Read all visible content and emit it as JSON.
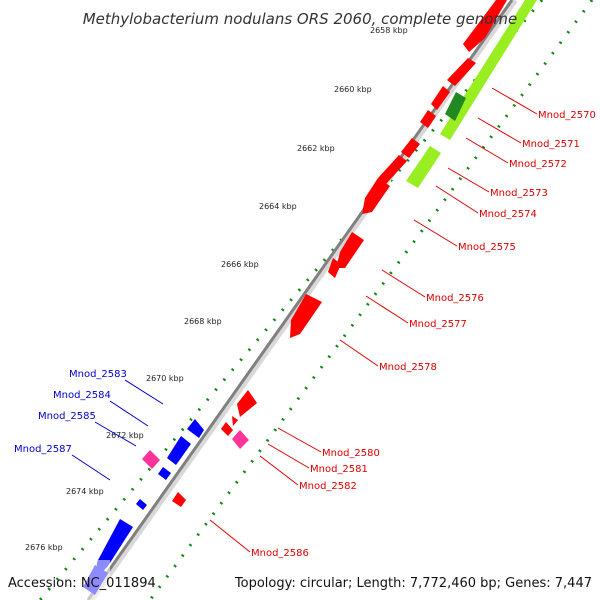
{
  "title": "Methylobacterium nodulans ORS 2060, complete genome",
  "accession": "Accession: NC_011894",
  "summary": "Topology: circular; Length: 7,772,460 bp; Genes: 7,447",
  "kbp_ticks": [
    "2658 kbp",
    "2660 kbp",
    "2662 kbp",
    "2664 kbp",
    "2666 kbp",
    "2668 kbp",
    "2670 kbp",
    "2672 kbp",
    "2674 kbp",
    "2676 kbp"
  ],
  "colors": {
    "forward": "#ff0000",
    "reverse": "#0000ff",
    "rna": "#ff3399",
    "gc_track": "#99ee22",
    "gc_dark": "#228822",
    "leader_forward": "#dd0000",
    "leader_reverse": "#0000cc",
    "dotted_track": "#118811",
    "backbone": "#808080"
  },
  "forward_labels": [
    "Mnod_2570",
    "Mnod_2571",
    "Mnod_2572",
    "Mnod_2573",
    "Mnod_2574",
    "Mnod_2575",
    "Mnod_2576",
    "Mnod_2577",
    "Mnod_2578",
    "Mnod_2580",
    "Mnod_2581",
    "Mnod_2582",
    "Mnod_2586"
  ],
  "reverse_labels": [
    "Mnod_2583",
    "Mnod_2584",
    "Mnod_2585",
    "Mnod_2587"
  ]
}
